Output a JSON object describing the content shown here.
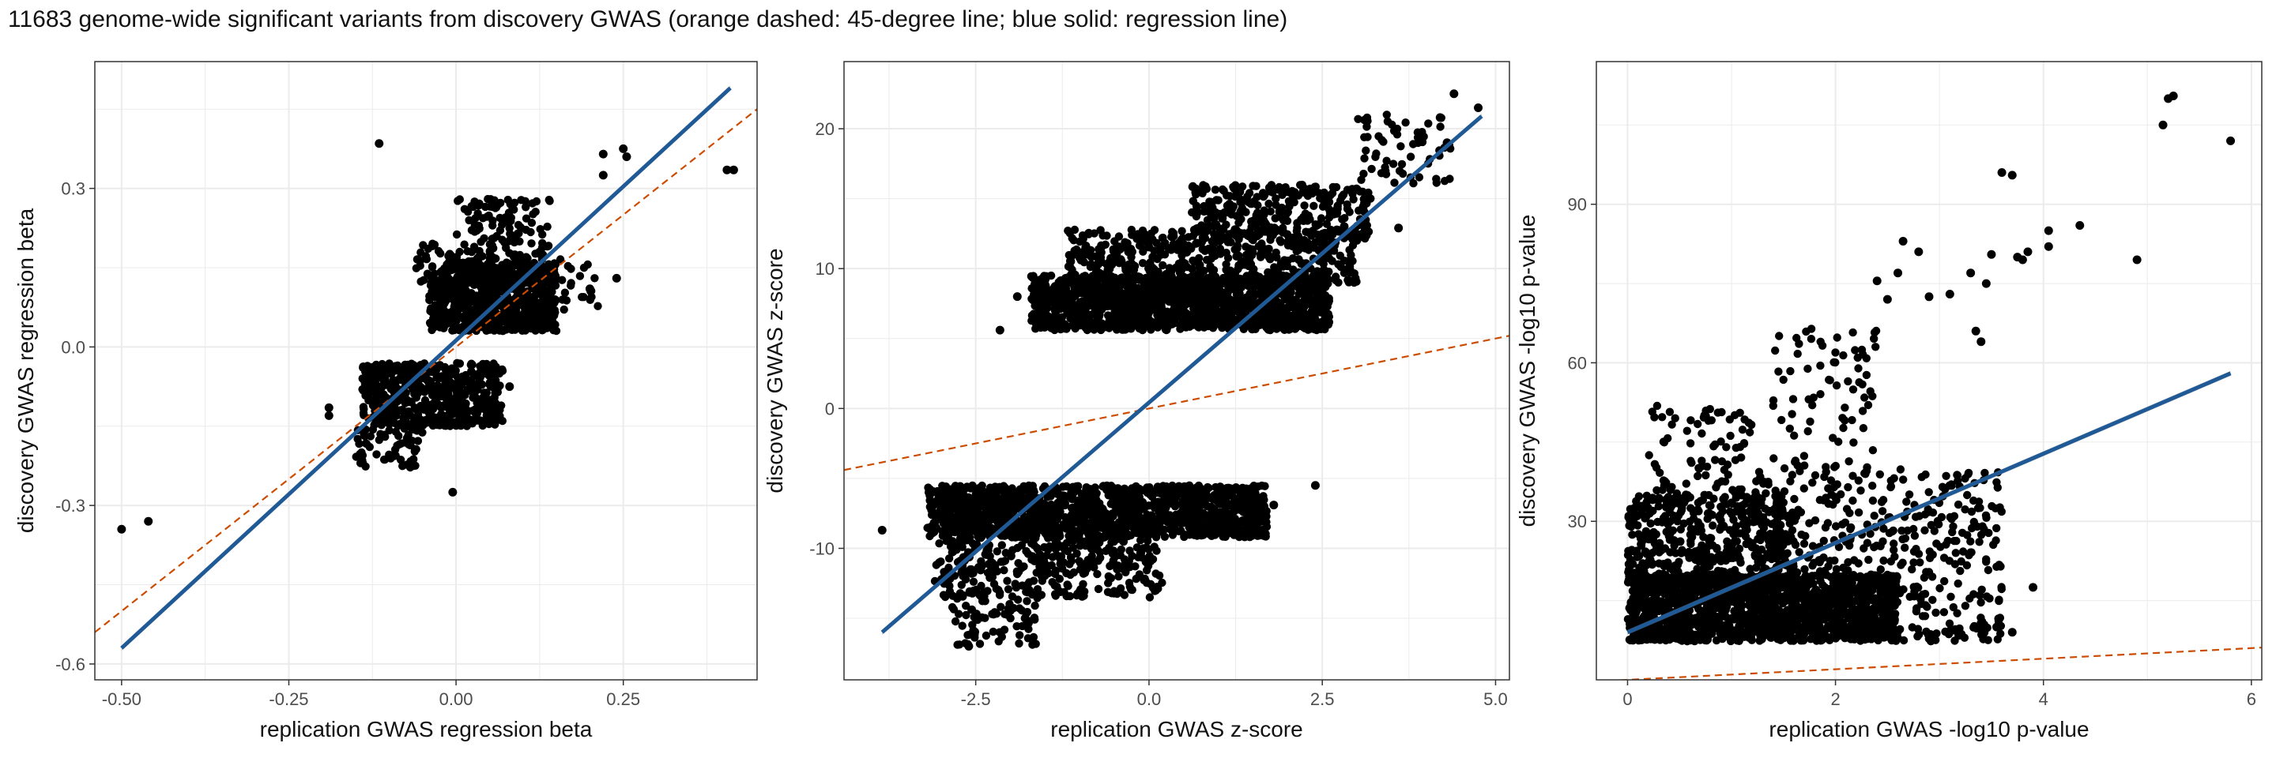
{
  "title": "11683 genome-wide significant variants from discovery GWAS (orange dashed: 45-degree line; blue solid: regression line)",
  "colors": {
    "points": "#000000",
    "identity_line": "#CC4C02",
    "regression_line": "#1F5A96",
    "band": "#8C8C8C",
    "grid": "#EBEBEB",
    "panel_border": "#333333"
  },
  "chart_data": [
    {
      "type": "scatter",
      "xlabel": "replication GWAS regression beta",
      "ylabel": "discovery GWAS regression beta",
      "xlim": [
        -0.54,
        0.45
      ],
      "ylim": [
        -0.63,
        0.54
      ],
      "xticks": [
        -0.5,
        -0.25,
        0.0,
        0.25
      ],
      "xtick_labels": [
        "-0.50",
        "-0.25",
        "0.00",
        "0.25"
      ],
      "yticks": [
        -0.6,
        -0.3,
        0.0,
        0.3
      ],
      "ytick_labels": [
        "-0.6",
        "-0.3",
        "0.0",
        "0.3"
      ],
      "grid": true,
      "identity_line": {
        "slope": 1,
        "intercept": 0,
        "style": "dashed"
      },
      "regression_line": {
        "x": [
          -0.5,
          0.41
        ],
        "y": [
          -0.57,
          0.49
        ]
      },
      "clusters": [
        {
          "n": 700,
          "x": [
            -0.04,
            0.15
          ],
          "y": [
            0.03,
            0.16
          ]
        },
        {
          "n": 120,
          "x": [
            0.0,
            0.14
          ],
          "y": [
            0.16,
            0.28
          ]
        },
        {
          "n": 60,
          "x": [
            -0.06,
            0.04
          ],
          "y": [
            0.12,
            0.2
          ]
        },
        {
          "n": 550,
          "x": [
            -0.14,
            0.07
          ],
          "y": [
            -0.15,
            -0.03
          ]
        },
        {
          "n": 60,
          "x": [
            -0.15,
            -0.05
          ],
          "y": [
            -0.23,
            -0.15
          ]
        },
        {
          "n": 40,
          "x": [
            0.08,
            0.22
          ],
          "y": [
            0.07,
            0.17
          ]
        }
      ],
      "points": [
        {
          "x": -0.5,
          "y": -0.345
        },
        {
          "x": -0.46,
          "y": -0.33
        },
        {
          "x": -0.115,
          "y": 0.385
        },
        {
          "x": 0.22,
          "y": 0.365
        },
        {
          "x": 0.25,
          "y": 0.375
        },
        {
          "x": 0.255,
          "y": 0.36
        },
        {
          "x": 0.22,
          "y": 0.325
        },
        {
          "x": 0.405,
          "y": 0.335
        },
        {
          "x": 0.415,
          "y": 0.335
        },
        {
          "x": 0.24,
          "y": 0.13
        },
        {
          "x": 0.2,
          "y": 0.11
        },
        {
          "x": -0.005,
          "y": -0.275
        },
        {
          "x": -0.19,
          "y": -0.115
        },
        {
          "x": -0.19,
          "y": -0.13
        },
        {
          "x": 0.08,
          "y": -0.075
        },
        {
          "x": 0.06,
          "y": -0.115
        }
      ]
    },
    {
      "type": "scatter",
      "xlabel": "replication GWAS z-score",
      "ylabel": "discovery GWAS z-score",
      "xlim": [
        -4.4,
        5.2
      ],
      "ylim": [
        -19.4,
        24.8
      ],
      "xticks": [
        -2.5,
        0.0,
        2.5,
        5.0
      ],
      "xtick_labels": [
        "-2.5",
        "0.0",
        "2.5",
        "5.0"
      ],
      "yticks": [
        -10,
        0,
        10,
        20
      ],
      "ytick_labels": [
        "-10",
        "0",
        "10",
        "20"
      ],
      "grid": true,
      "identity_line": {
        "slope": 1,
        "intercept": 0,
        "style": "dashed"
      },
      "regression_line": {
        "x": [
          -3.85,
          4.8
        ],
        "y": [
          -16.0,
          20.9
        ]
      },
      "clusters": [
        {
          "n": 1500,
          "x": [
            -1.7,
            2.6
          ],
          "y": [
            5.6,
            9.5
          ]
        },
        {
          "n": 500,
          "x": [
            -1.2,
            3.0
          ],
          "y": [
            9.0,
            12.8
          ]
        },
        {
          "n": 300,
          "x": [
            0.6,
            3.2
          ],
          "y": [
            12.0,
            16.0
          ]
        },
        {
          "n": 60,
          "x": [
            3.0,
            4.4
          ],
          "y": [
            16.0,
            21.0
          ]
        },
        {
          "n": 1300,
          "x": [
            -3.2,
            1.7
          ],
          "y": [
            -9.2,
            -5.5
          ]
        },
        {
          "n": 400,
          "x": [
            -3.1,
            0.2
          ],
          "y": [
            -13.5,
            -8.5
          ]
        },
        {
          "n": 80,
          "x": [
            -2.9,
            -1.6
          ],
          "y": [
            -17.0,
            -13.0
          ]
        }
      ],
      "points": [
        {
          "x": -2.15,
          "y": 5.6
        },
        {
          "x": -1.9,
          "y": 8.0
        },
        {
          "x": 4.4,
          "y": 22.5
        },
        {
          "x": 4.75,
          "y": 21.5
        },
        {
          "x": 4.2,
          "y": 20.8
        },
        {
          "x": -3.85,
          "y": -8.7
        },
        {
          "x": 2.4,
          "y": -5.5
        },
        {
          "x": 3.6,
          "y": 12.9
        },
        {
          "x": 4.3,
          "y": 19.0
        },
        {
          "x": -2.6,
          "y": -17.0
        },
        {
          "x": 1.8,
          "y": -6.9
        }
      ]
    },
    {
      "type": "scatter",
      "xlabel": "replication GWAS -log10 p-value",
      "ylabel": "discovery GWAS -log10 p-value",
      "xlim": [
        -0.3,
        6.1
      ],
      "ylim": [
        0,
        117
      ],
      "xticks": [
        0,
        2,
        4,
        6
      ],
      "xtick_labels": [
        "0",
        "2",
        "4",
        "6"
      ],
      "yticks": [
        30,
        60,
        90
      ],
      "ytick_labels": [
        "30",
        "60",
        "90"
      ],
      "grid": true,
      "identity_line": {
        "slope": 1,
        "intercept": 0,
        "style": "dashed"
      },
      "regression_line": {
        "x": [
          0,
          5.8
        ],
        "y": [
          9.0,
          58.0
        ]
      },
      "clusters": [
        {
          "n": 1600,
          "x": [
            0.0,
            2.6
          ],
          "y": [
            7.3,
            20.0
          ]
        },
        {
          "n": 500,
          "x": [
            0.0,
            1.6
          ],
          "y": [
            18.0,
            35.0
          ]
        },
        {
          "n": 300,
          "x": [
            1.2,
            3.6
          ],
          "y": [
            18.0,
            40.0
          ]
        },
        {
          "n": 80,
          "x": [
            0.2,
            1.2
          ],
          "y": [
            35.0,
            52.0
          ]
        },
        {
          "n": 80,
          "x": [
            1.4,
            2.4
          ],
          "y": [
            40.0,
            67.0
          ]
        },
        {
          "n": 100,
          "x": [
            2.4,
            3.6
          ],
          "y": [
            7.3,
            18.0
          ]
        }
      ],
      "points": [
        {
          "x": 5.2,
          "y": 110.0
        },
        {
          "x": 5.25,
          "y": 110.5
        },
        {
          "x": 5.15,
          "y": 105.0
        },
        {
          "x": 5.8,
          "y": 102.0
        },
        {
          "x": 3.6,
          "y": 96.0
        },
        {
          "x": 3.7,
          "y": 95.5
        },
        {
          "x": 3.75,
          "y": 80.0
        },
        {
          "x": 3.85,
          "y": 81.0
        },
        {
          "x": 3.8,
          "y": 79.5
        },
        {
          "x": 4.05,
          "y": 85.0
        },
        {
          "x": 4.35,
          "y": 86.0
        },
        {
          "x": 4.05,
          "y": 82.0
        },
        {
          "x": 4.9,
          "y": 79.5
        },
        {
          "x": 3.5,
          "y": 80.5
        },
        {
          "x": 2.65,
          "y": 83.0
        },
        {
          "x": 2.8,
          "y": 81.0
        },
        {
          "x": 3.3,
          "y": 77.0
        },
        {
          "x": 3.45,
          "y": 75.0
        },
        {
          "x": 2.9,
          "y": 72.5
        },
        {
          "x": 3.1,
          "y": 73.0
        },
        {
          "x": 2.4,
          "y": 75.5
        },
        {
          "x": 2.5,
          "y": 72.0
        },
        {
          "x": 2.6,
          "y": 77.0
        },
        {
          "x": 3.4,
          "y": 64.0
        },
        {
          "x": 3.35,
          "y": 66.0
        },
        {
          "x": 3.9,
          "y": 17.5
        },
        {
          "x": 3.7,
          "y": 9.0
        },
        {
          "x": 3.55,
          "y": 10.0
        },
        {
          "x": 0.6,
          "y": 8.0
        }
      ]
    }
  ]
}
